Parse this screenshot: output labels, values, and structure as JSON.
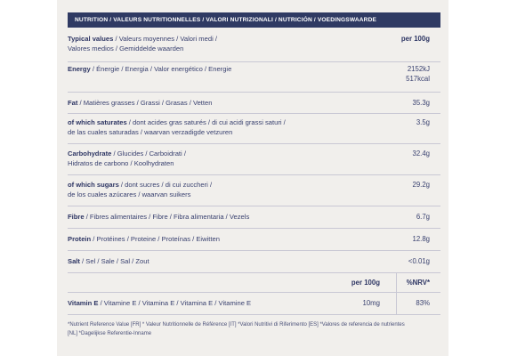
{
  "header": "NUTRITION / VALEURS NUTRITIONNELLES / VALORI NUTRIZIONALI / NUTRICIÓN / VOEDINGSWAARDE",
  "rows": [
    {
      "bold": "Typical values",
      "rest1": " / Valeurs moyennes / Valori medi /",
      "rest2": "Valores medios / Gemiddelde waarden",
      "value": "per 100g"
    },
    {
      "bold": "Energy",
      "rest1": " / Énergie / Energia / Valor energético / Energie",
      "rest2": "",
      "value": "2152kJ",
      "value2": "517kcal"
    },
    {
      "bold": "Fat",
      "rest1": " / Matières grasses / Grassi / Grasas / Vetten",
      "rest2": "",
      "value": "35.3g"
    },
    {
      "bold": "of which saturates",
      "rest1": " / dont acides gras saturés / di cui acidi grassi saturi /",
      "rest2": "de las cuales saturadas / waarvan verzadigde vetzuren",
      "value": "3.5g"
    },
    {
      "bold": "Carbohydrate",
      "rest1": " / Glucides / Carboidrati /",
      "rest2": "Hidratos de carbono / Koolhydraten",
      "value": "32.4g"
    },
    {
      "bold": "of which sugars",
      "rest1": " / dont sucres / di cui zuccheri /",
      "rest2": "de los cuales azúcares / waarvan suikers",
      "value": "29.2g"
    },
    {
      "bold": "Fibre",
      "rest1": " / Fibres alimentaires / Fibre / Fibra alimentaria / Vezels",
      "rest2": "",
      "value": "6.7g"
    },
    {
      "bold": "Protein",
      "rest1": " / Protéines / Proteine / Proteínas / Eiwitten",
      "rest2": "",
      "value": "12.8g"
    },
    {
      "bold": "Salt",
      "rest1": " / Sel / Sale / Sal / Zout",
      "rest2": "",
      "value": "<0.01g"
    }
  ],
  "vitamin_header": {
    "per100": "per 100g",
    "nrv": "%NRV*"
  },
  "vitamin": {
    "bold": "Vitamin E",
    "rest1": " / Vitamine E / Vitamina E / Vitamina E / Vitamine E",
    "amount": "10mg",
    "nrv": "83%"
  },
  "footnote1": "*Nutrient Reference Value [FR] * Valeur Nutritionnelle de Référence [IT] *Valori Nutritivi di Riferimento [ES] *Valores de referencia de nutrientes",
  "footnote2": "[NL] *Dagelijkse Referentie-Inname"
}
